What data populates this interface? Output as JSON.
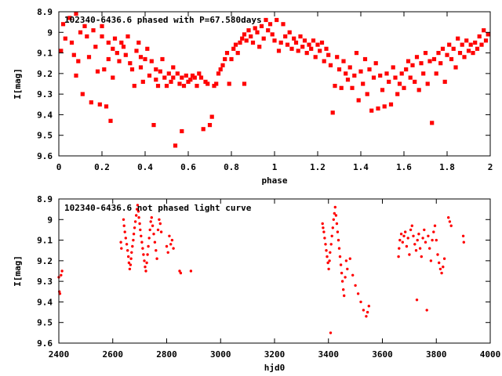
{
  "chart_data": [
    {
      "type": "scatter",
      "title": "102340-6436.6 phased with P=67.580days",
      "xlabel": "phase",
      "ylabel": "I[mag]",
      "xlim": [
        0,
        2
      ],
      "ylim": [
        8.9,
        9.6
      ],
      "y_inverted": true,
      "marker": "filled-square",
      "color": "#ff0000",
      "xticks": [
        "0",
        "0.2",
        "0.4",
        "0.6",
        "0.8",
        "1",
        "1.2",
        "1.4",
        "1.6",
        "1.8",
        "2"
      ],
      "yticks": [
        "8.9",
        "9",
        "9.1",
        "9.2",
        "9.3",
        "9.4",
        "9.5",
        "9.6"
      ],
      "points": [
        [
          0.01,
          9.09
        ],
        [
          0.02,
          8.96
        ],
        [
          0.03,
          9.03
        ],
        [
          0.05,
          8.93
        ],
        [
          0.06,
          9.05
        ],
        [
          0.07,
          9.11
        ],
        [
          0.08,
          9.21
        ],
        [
          0.08,
          8.91
        ],
        [
          0.09,
          9.14
        ],
        [
          0.1,
          9.0
        ],
        [
          0.11,
          9.3
        ],
        [
          0.12,
          8.97
        ],
        [
          0.13,
          9.02
        ],
        [
          0.14,
          9.12
        ],
        [
          0.15,
          9.34
        ],
        [
          0.16,
          8.99
        ],
        [
          0.17,
          9.07
        ],
        [
          0.18,
          9.19
        ],
        [
          0.19,
          9.35
        ],
        [
          0.2,
          8.97
        ],
        [
          0.2,
          9.02
        ],
        [
          0.21,
          9.18
        ],
        [
          0.22,
          9.36
        ],
        [
          0.23,
          9.05
        ],
        [
          0.23,
          9.13
        ],
        [
          0.24,
          9.43
        ],
        [
          0.25,
          9.08
        ],
        [
          0.25,
          9.22
        ],
        [
          0.26,
          9.03
        ],
        [
          0.27,
          9.1
        ],
        [
          0.28,
          9.14
        ],
        [
          0.29,
          9.05
        ],
        [
          0.3,
          9.07
        ],
        [
          0.31,
          9.11
        ],
        [
          0.32,
          9.02
        ],
        [
          0.33,
          9.15
        ],
        [
          0.34,
          9.18
        ],
        [
          0.35,
          9.26
        ],
        [
          0.36,
          9.09
        ],
        [
          0.37,
          9.05
        ],
        [
          0.38,
          9.12
        ],
        [
          0.38,
          9.17
        ],
        [
          0.39,
          9.24
        ],
        [
          0.4,
          9.13
        ],
        [
          0.41,
          9.08
        ],
        [
          0.42,
          9.21
        ],
        [
          0.43,
          9.14
        ],
        [
          0.44,
          9.45
        ],
        [
          0.45,
          9.18
        ],
        [
          0.45,
          9.23
        ],
        [
          0.46,
          9.26
        ],
        [
          0.47,
          9.19
        ],
        [
          0.48,
          9.13
        ],
        [
          0.49,
          9.22
        ],
        [
          0.5,
          9.26
        ],
        [
          0.51,
          9.2
        ],
        [
          0.52,
          9.24
        ],
        [
          0.53,
          9.17
        ],
        [
          0.53,
          9.22
        ],
        [
          0.54,
          9.55
        ],
        [
          0.55,
          9.2
        ],
        [
          0.56,
          9.25
        ],
        [
          0.57,
          9.48
        ],
        [
          0.57,
          9.22
        ],
        [
          0.58,
          9.26
        ],
        [
          0.59,
          9.21
        ],
        [
          0.6,
          9.24
        ],
        [
          0.61,
          9.23
        ],
        [
          0.62,
          9.21
        ],
        [
          0.63,
          9.22
        ],
        [
          0.64,
          9.26
        ],
        [
          0.65,
          9.2
        ],
        [
          0.66,
          9.22
        ],
        [
          0.67,
          9.47
        ],
        [
          0.68,
          9.24
        ],
        [
          0.69,
          9.25
        ],
        [
          0.7,
          9.45
        ],
        [
          0.71,
          9.41
        ],
        [
          0.72,
          9.26
        ],
        [
          0.73,
          9.25
        ],
        [
          0.74,
          9.2
        ],
        [
          0.75,
          9.18
        ],
        [
          0.76,
          9.16
        ],
        [
          0.77,
          9.13
        ],
        [
          0.78,
          9.1
        ],
        [
          0.79,
          9.25
        ],
        [
          0.8,
          9.13
        ],
        [
          0.81,
          9.08
        ],
        [
          0.82,
          9.06
        ],
        [
          0.83,
          9.1
        ],
        [
          0.84,
          9.05
        ],
        [
          0.85,
          9.03
        ],
        [
          0.86,
          9.01
        ],
        [
          0.86,
          9.25
        ],
        [
          0.87,
          9.04
        ],
        [
          0.88,
          8.99
        ],
        [
          0.89,
          9.02
        ],
        [
          0.9,
          9.05
        ],
        [
          0.91,
          8.98
        ],
        [
          0.92,
          9.0
        ],
        [
          0.93,
          9.07
        ],
        [
          0.94,
          8.97
        ],
        [
          0.95,
          9.03
        ],
        [
          0.96,
          8.94
        ],
        [
          0.97,
          8.99
        ],
        [
          0.98,
          8.96
        ],
        [
          0.99,
          9.01
        ],
        [
          1.0,
          9.04
        ],
        [
          1.01,
          8.94
        ],
        [
          1.02,
          9.09
        ],
        [
          1.03,
          9.05
        ],
        [
          1.04,
          8.96
        ],
        [
          1.05,
          9.02
        ],
        [
          1.06,
          9.06
        ],
        [
          1.07,
          9.0
        ],
        [
          1.08,
          9.08
        ],
        [
          1.09,
          9.03
        ],
        [
          1.1,
          9.05
        ],
        [
          1.11,
          9.09
        ],
        [
          1.12,
          9.02
        ],
        [
          1.13,
          9.07
        ],
        [
          1.14,
          9.04
        ],
        [
          1.15,
          9.1
        ],
        [
          1.16,
          9.06
        ],
        [
          1.17,
          9.08
        ],
        [
          1.18,
          9.04
        ],
        [
          1.19,
          9.12
        ],
        [
          1.2,
          9.06
        ],
        [
          1.21,
          9.09
        ],
        [
          1.22,
          9.05
        ],
        [
          1.23,
          9.14
        ],
        [
          1.24,
          9.08
        ],
        [
          1.25,
          9.11
        ],
        [
          1.26,
          9.16
        ],
        [
          1.27,
          9.39
        ],
        [
          1.28,
          9.26
        ],
        [
          1.29,
          9.12
        ],
        [
          1.3,
          9.18
        ],
        [
          1.31,
          9.27
        ],
        [
          1.32,
          9.14
        ],
        [
          1.33,
          9.2
        ],
        [
          1.34,
          9.23
        ],
        [
          1.35,
          9.17
        ],
        [
          1.36,
          9.27
        ],
        [
          1.37,
          9.21
        ],
        [
          1.38,
          9.1
        ],
        [
          1.39,
          9.33
        ],
        [
          1.4,
          9.19
        ],
        [
          1.41,
          9.25
        ],
        [
          1.42,
          9.13
        ],
        [
          1.43,
          9.3
        ],
        [
          1.44,
          9.18
        ],
        [
          1.45,
          9.38
        ],
        [
          1.46,
          9.22
        ],
        [
          1.47,
          9.15
        ],
        [
          1.48,
          9.37
        ],
        [
          1.49,
          9.21
        ],
        [
          1.5,
          9.28
        ],
        [
          1.51,
          9.36
        ],
        [
          1.52,
          9.2
        ],
        [
          1.53,
          9.24
        ],
        [
          1.54,
          9.35
        ],
        [
          1.55,
          9.17
        ],
        [
          1.56,
          9.22
        ],
        [
          1.57,
          9.3
        ],
        [
          1.58,
          9.25
        ],
        [
          1.59,
          9.2
        ],
        [
          1.6,
          9.27
        ],
        [
          1.61,
          9.18
        ],
        [
          1.62,
          9.14
        ],
        [
          1.63,
          9.22
        ],
        [
          1.64,
          9.16
        ],
        [
          1.65,
          9.24
        ],
        [
          1.66,
          9.12
        ],
        [
          1.67,
          9.28
        ],
        [
          1.68,
          9.15
        ],
        [
          1.69,
          9.2
        ],
        [
          1.7,
          9.1
        ],
        [
          1.71,
          9.25
        ],
        [
          1.72,
          9.14
        ],
        [
          1.73,
          9.44
        ],
        [
          1.74,
          9.13
        ],
        [
          1.75,
          9.2
        ],
        [
          1.76,
          9.1
        ],
        [
          1.77,
          9.15
        ],
        [
          1.78,
          9.08
        ],
        [
          1.79,
          9.24
        ],
        [
          1.8,
          9.11
        ],
        [
          1.81,
          9.06
        ],
        [
          1.82,
          9.13
        ],
        [
          1.83,
          9.08
        ],
        [
          1.84,
          9.17
        ],
        [
          1.85,
          9.03
        ],
        [
          1.86,
          9.1
        ],
        [
          1.87,
          9.06
        ],
        [
          1.88,
          9.12
        ],
        [
          1.89,
          9.04
        ],
        [
          1.9,
          9.09
        ],
        [
          1.91,
          9.06
        ],
        [
          1.92,
          9.1
        ],
        [
          1.93,
          9.05
        ],
        [
          1.94,
          9.08
        ],
        [
          1.95,
          9.02
        ],
        [
          1.96,
          9.06
        ],
        [
          1.97,
          8.99
        ],
        [
          1.98,
          9.04
        ],
        [
          1.99,
          9.01
        ]
      ]
    },
    {
      "type": "scatter",
      "title": "102340-6436.6 not phased light curve",
      "xlabel": "hjd0",
      "ylabel": "I[mag]",
      "xlim": [
        2400,
        4000
      ],
      "ylim": [
        8.9,
        9.6
      ],
      "y_inverted": true,
      "marker": "dot",
      "color": "#ff0000",
      "xticks": [
        "2400",
        "2600",
        "2800",
        "3000",
        "3200",
        "3400",
        "3600",
        "3800",
        "4000"
      ],
      "yticks": [
        "8.9",
        "9",
        "9.1",
        "9.2",
        "9.3",
        "9.4",
        "9.5",
        "9.6"
      ],
      "points": [
        [
          2400,
          9.28
        ],
        [
          2402,
          9.35
        ],
        [
          2404,
          9.36
        ],
        [
          2408,
          9.27
        ],
        [
          2412,
          9.25
        ],
        [
          2630,
          9.11
        ],
        [
          2632,
          9.14
        ],
        [
          2640,
          9.0
        ],
        [
          2642,
          9.03
        ],
        [
          2645,
          9.06
        ],
        [
          2648,
          9.09
        ],
        [
          2652,
          9.12
        ],
        [
          2655,
          9.15
        ],
        [
          2658,
          9.18
        ],
        [
          2660,
          9.21
        ],
        [
          2663,
          9.24
        ],
        [
          2666,
          9.22
        ],
        [
          2668,
          9.19
        ],
        [
          2670,
          9.16
        ],
        [
          2673,
          9.13
        ],
        [
          2676,
          9.1
        ],
        [
          2678,
          9.07
        ],
        [
          2681,
          9.04
        ],
        [
          2684,
          9.01
        ],
        [
          2687,
          8.98
        ],
        [
          2690,
          8.95
        ],
        [
          2692,
          8.93
        ],
        [
          2695,
          8.96
        ],
        [
          2697,
          8.99
        ],
        [
          2700,
          9.02
        ],
        [
          2702,
          9.05
        ],
        [
          2705,
          9.08
        ],
        [
          2708,
          9.11
        ],
        [
          2711,
          9.14
        ],
        [
          2714,
          9.17
        ],
        [
          2717,
          9.2
        ],
        [
          2720,
          9.23
        ],
        [
          2723,
          9.25
        ],
        [
          2726,
          9.21
        ],
        [
          2729,
          9.17
        ],
        [
          2732,
          9.13
        ],
        [
          2735,
          9.09
        ],
        [
          2738,
          9.05
        ],
        [
          2741,
          9.01
        ],
        [
          2744,
          8.99
        ],
        [
          2748,
          9.03
        ],
        [
          2752,
          9.07
        ],
        [
          2756,
          9.11
        ],
        [
          2760,
          9.15
        ],
        [
          2764,
          9.19
        ],
        [
          2768,
          9.05
        ],
        [
          2772,
          9.0
        ],
        [
          2776,
          9.02
        ],
        [
          2780,
          9.06
        ],
        [
          2800,
          9.13
        ],
        [
          2805,
          9.16
        ],
        [
          2810,
          9.08
        ],
        [
          2815,
          9.12
        ],
        [
          2820,
          9.1
        ],
        [
          2825,
          9.14
        ],
        [
          2848,
          9.25
        ],
        [
          2852,
          9.26
        ],
        [
          2890,
          9.25
        ],
        [
          3378,
          9.02
        ],
        [
          3380,
          9.04
        ],
        [
          3383,
          9.06
        ],
        [
          3386,
          9.09
        ],
        [
          3389,
          9.12
        ],
        [
          3392,
          9.15
        ],
        [
          3395,
          9.18
        ],
        [
          3398,
          9.21
        ],
        [
          3401,
          9.24
        ],
        [
          3404,
          9.2
        ],
        [
          3406,
          9.16
        ],
        [
          3408,
          9.55
        ],
        [
          3410,
          9.12
        ],
        [
          3413,
          9.08
        ],
        [
          3416,
          9.04
        ],
        [
          3419,
          9.0
        ],
        [
          3422,
          8.97
        ],
        [
          3425,
          8.94
        ],
        [
          3428,
          8.98
        ],
        [
          3431,
          9.02
        ],
        [
          3434,
          9.06
        ],
        [
          3437,
          9.1
        ],
        [
          3440,
          9.14
        ],
        [
          3443,
          9.18
        ],
        [
          3446,
          9.22
        ],
        [
          3449,
          9.26
        ],
        [
          3452,
          9.3
        ],
        [
          3455,
          9.34
        ],
        [
          3458,
          9.37
        ],
        [
          3462,
          9.28
        ],
        [
          3466,
          9.2
        ],
        [
          3470,
          9.24
        ],
        [
          3480,
          9.19
        ],
        [
          3490,
          9.27
        ],
        [
          3500,
          9.32
        ],
        [
          3510,
          9.36
        ],
        [
          3520,
          9.4
        ],
        [
          3530,
          9.44
        ],
        [
          3540,
          9.47
        ],
        [
          3545,
          9.45
        ],
        [
          3550,
          9.42
        ],
        [
          3660,
          9.18
        ],
        [
          3662,
          9.14
        ],
        [
          3665,
          9.1
        ],
        [
          3670,
          9.07
        ],
        [
          3675,
          9.11
        ],
        [
          3680,
          9.08
        ],
        [
          3685,
          9.06
        ],
        [
          3690,
          9.13
        ],
        [
          3695,
          9.09
        ],
        [
          3700,
          9.17
        ],
        [
          3705,
          9.05
        ],
        [
          3710,
          9.03
        ],
        [
          3715,
          9.08
        ],
        [
          3720,
          9.12
        ],
        [
          3725,
          9.15
        ],
        [
          3728,
          9.39
        ],
        [
          3730,
          9.1
        ],
        [
          3735,
          9.07
        ],
        [
          3740,
          9.14
        ],
        [
          3745,
          9.18
        ],
        [
          3750,
          9.09
        ],
        [
          3755,
          9.05
        ],
        [
          3760,
          9.11
        ],
        [
          3765,
          9.44
        ],
        [
          3770,
          9.08
        ],
        [
          3775,
          9.14
        ],
        [
          3780,
          9.2
        ],
        [
          3785,
          9.1
        ],
        [
          3790,
          9.06
        ],
        [
          3795,
          9.03
        ],
        [
          3800,
          9.1
        ],
        [
          3805,
          9.17
        ],
        [
          3810,
          9.21
        ],
        [
          3815,
          9.24
        ],
        [
          3820,
          9.26
        ],
        [
          3825,
          9.23
        ],
        [
          3830,
          9.19
        ],
        [
          3845,
          8.99
        ],
        [
          3850,
          9.01
        ],
        [
          3855,
          9.03
        ],
        [
          3900,
          9.08
        ],
        [
          3902,
          9.11
        ]
      ]
    }
  ]
}
